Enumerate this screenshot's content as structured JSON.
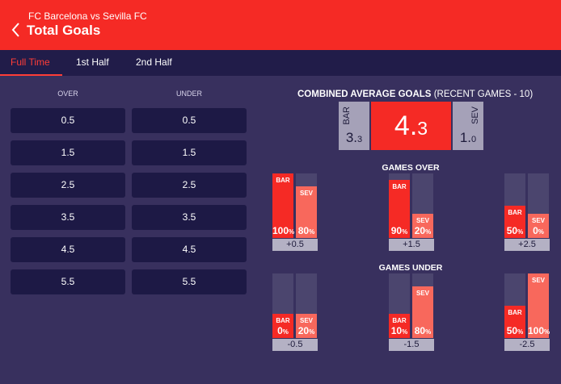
{
  "header": {
    "subtitle": "FC Barcelona vs Sevilla FC",
    "title": "Total Goals"
  },
  "tabs": [
    {
      "label": "Full Time"
    },
    {
      "label": "1st Half"
    },
    {
      "label": "2nd Half"
    }
  ],
  "table": {
    "over_header": "OVER",
    "under_header": "UNDER",
    "lines": [
      "0.5",
      "1.5",
      "2.5",
      "3.5",
      "4.5",
      "5.5"
    ]
  },
  "combined": {
    "title": "COMBINED AVERAGE GOALS",
    "subtitle": "(RECENT GAMES - 10)",
    "home": {
      "abbr": "BAR",
      "value_int": "3.",
      "value_dec": "3"
    },
    "total": {
      "value_int": "4.",
      "value_dec": "3"
    },
    "away": {
      "abbr": "SEV",
      "value_int": "1.",
      "value_dec": "0"
    }
  },
  "games_over": {
    "title": "GAMES OVER",
    "items": [
      {
        "line": "+0.5",
        "home_abbr": "BAR",
        "home_pct": 100,
        "away_abbr": "SEV",
        "away_pct": 80
      },
      {
        "line": "+1.5",
        "home_abbr": "BAR",
        "home_pct": 90,
        "away_abbr": "SEV",
        "away_pct": 20
      },
      {
        "line": "+2.5",
        "home_abbr": "BAR",
        "home_pct": 50,
        "away_abbr": "SEV",
        "away_pct": 0
      }
    ]
  },
  "games_under": {
    "title": "GAMES UNDER",
    "items": [
      {
        "line": "-0.5",
        "home_abbr": "BAR",
        "home_pct": 0,
        "away_abbr": "SEV",
        "away_pct": 20
      },
      {
        "line": "-1.5",
        "home_abbr": "BAR",
        "home_pct": 10,
        "away_abbr": "SEV",
        "away_pct": 80
      },
      {
        "line": "-2.5",
        "home_abbr": "BAR",
        "home_pct": 50,
        "away_abbr": "SEV",
        "away_pct": 100
      }
    ]
  },
  "pct_unit": "%",
  "colors": {
    "header": "#f52a25",
    "background": "#38305e",
    "tabbar": "#211c49",
    "button": "#1d1945",
    "home": "#f52a25",
    "away": "#f8685c"
  },
  "icons": {
    "back": "chevron-left-icon"
  }
}
